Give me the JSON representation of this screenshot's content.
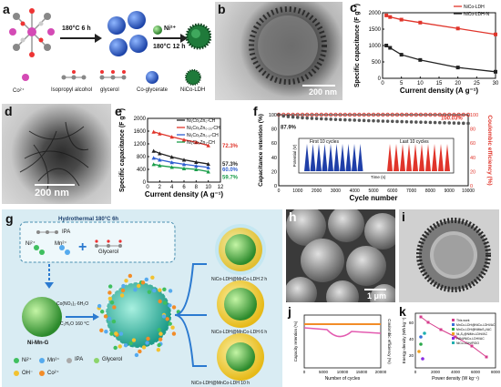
{
  "labels": {
    "a": "a",
    "b": "b",
    "c": "c",
    "d": "d",
    "e": "e",
    "f": "f",
    "g": "g",
    "h": "h",
    "i": "i",
    "j": "j",
    "k": "k"
  },
  "panel_a": {
    "step1": "180°C 6 h",
    "step2_ion": "Ni²⁺",
    "step2": "180°C 12 h",
    "legend": [
      "Co²⁺",
      "Isopropyl alcohol",
      "glycerol",
      "Co-glycerate",
      "NiCo-LDH"
    ]
  },
  "panel_b": {
    "scale": "200 nm"
  },
  "panel_d": {
    "scale": "200 nm"
  },
  "panel_c": {
    "chart_data": {
      "type": "line",
      "ylabel": "Specific capacitance (F g⁻¹)",
      "xlabel": "Current density (A g⁻¹)",
      "xlim": [
        0,
        30
      ],
      "ylim": [
        0,
        2000
      ],
      "xticks": [
        "0",
        "5",
        "10",
        "15",
        "20",
        "25",
        "30"
      ],
      "yticks": [
        "0",
        "500",
        "1000",
        "1500",
        "2000"
      ],
      "legend_position": "top-right",
      "series": [
        {
          "name": "NiCo-LDH",
          "color": "#e0352b",
          "marker": "square",
          "x": [
            1,
            2,
            5,
            10,
            20,
            30
          ],
          "y": [
            1920,
            1870,
            1790,
            1700,
            1520,
            1340
          ]
        },
        {
          "name": "NiCo-LDH-N",
          "color": "#222222",
          "marker": "square",
          "x": [
            1,
            2,
            5,
            10,
            20,
            30
          ],
          "y": [
            1000,
            930,
            720,
            560,
            330,
            200
          ]
        }
      ]
    }
  },
  "panel_e": {
    "chart_data": {
      "type": "line",
      "ylabel": "Specific capacitance (F g⁻¹)",
      "xlabel": "Current density (A g⁻¹)",
      "xlim": [
        0,
        12
      ],
      "ylim": [
        0,
        2000
      ],
      "xticks": [
        "0",
        "2",
        "4",
        "6",
        "8",
        "10",
        "12"
      ],
      "yticks": [
        "0",
        "400",
        "800",
        "1200",
        "1600",
        "2000"
      ],
      "legend_position": "top-right",
      "series": [
        {
          "name": "Ni₁Co₁Zn₀-CH",
          "color": "#222222",
          "x": [
            1,
            2,
            4,
            6,
            8,
            10
          ],
          "y": [
            980,
            900,
            790,
            700,
            630,
            570
          ]
        },
        {
          "name": "Ni₁Co₁Zn₀.₂₅-CH",
          "color": "#e0352b",
          "x": [
            1,
            2,
            4,
            6,
            8,
            10
          ],
          "y": [
            1580,
            1520,
            1420,
            1330,
            1250,
            1150
          ]
        },
        {
          "name": "Ni₁Co₁Zn₀.₅-CH",
          "color": "#2f5fd0",
          "x": [
            1,
            2,
            4,
            6,
            8,
            10
          ],
          "y": [
            760,
            700,
            620,
            560,
            510,
            460
          ]
        },
        {
          "name": "Ni₁Co₁Zn₁-CH",
          "color": "#1b9e4b",
          "x": [
            1,
            2,
            4,
            6,
            8,
            10
          ],
          "y": [
            560,
            520,
            470,
            430,
            400,
            330
          ]
        }
      ],
      "annotations": [
        {
          "text": "72.3%",
          "color": "#e0352b"
        },
        {
          "text": "57.3%",
          "color": "#222222"
        },
        {
          "text": "60.0%",
          "color": "#2f5fd0"
        },
        {
          "text": "59.7%",
          "color": "#1b9e4b"
        }
      ]
    }
  },
  "panel_f": {
    "chart_data": {
      "type": "scatter",
      "ylabel_left": "Capacitance retention (%)",
      "ylabel_right": "Coulombic efficiency (%)",
      "xlabel": "Cycle number",
      "xlim": [
        0,
        10000
      ],
      "ylim": [
        0,
        100
      ],
      "xticks": [
        "0",
        "1000",
        "2000",
        "3000",
        "4000",
        "5000",
        "6000",
        "7000",
        "8000",
        "9000",
        "10000"
      ],
      "yticks": [
        "0",
        "20",
        "40",
        "60",
        "80",
        "100"
      ],
      "series": [
        {
          "name": "Coulombic efficiency",
          "color": "#e0352b",
          "y_start": 100,
          "y_end": 100
        },
        {
          "name": "Capacitance retention",
          "color": "#555555",
          "y_start": 100,
          "y_end": 87.9
        }
      ],
      "annotations": [
        {
          "text": "87.9%",
          "color": "#222222"
        },
        {
          "text": "100.03%",
          "color": "#e0352b"
        }
      ],
      "inset": {
        "ylabel": "Potential (V)",
        "xlabel": "Time (s)",
        "first_label": "First 10 cycles",
        "last_label": "Last 10 cycles",
        "first_ticks": [
          "0",
          "200",
          "400",
          "600",
          "800",
          "1000"
        ],
        "last_ticks": [
          "862000",
          "862100",
          "862200",
          "862300",
          "862400"
        ],
        "yticks": [
          "0.0",
          "0.2",
          "0.4",
          "0.6"
        ]
      }
    }
  },
  "panel_g": {
    "hydro_title": "Hydrothermal 180°C 6h",
    "ipa": "IPA",
    "ni": "Ni²⁺",
    "mn": "Mn²⁺",
    "glycerol": "Glycerol",
    "core": "Ni-Mn-G",
    "reagent1": "Co(NO₃)₂·6H₂O",
    "reagent2": "C₂H₆O 160 °C",
    "product1": "NiCo-LDH@MnCo-LDH 2 h",
    "product2": "NiCo-LDH@MnCo-LDH 6 h",
    "product3": "NiCo-LDH@MnCo-LDH 10 h",
    "legend": [
      "Ni²⁺",
      "Mn²⁺",
      "IPA",
      "Glycerol",
      "OH⁻",
      "Co²⁺"
    ]
  },
  "panel_h": {
    "scale": "1 μm"
  },
  "panel_j": {
    "chart_data": {
      "type": "line",
      "ylabel_left": "Capacity retention (%)",
      "ylabel_right": "Coulombic efficiency (%)",
      "xlabel": "Number of cycles",
      "xlim": [
        0,
        20000
      ],
      "xticks": [
        "0",
        "5000",
        "10000",
        "15000",
        "20000"
      ],
      "series": [
        {
          "name": "Coulombic efficiency",
          "color": "#f28c28"
        },
        {
          "name": "Capacity retention",
          "color": "#e35bb0"
        }
      ]
    }
  },
  "panel_k": {
    "chart_data": {
      "type": "scatter",
      "ylabel": "Energy density (Wh kg⁻¹)",
      "xlabel": "Power density (W kg⁻¹)",
      "xticks": [
        "0",
        "2000",
        "4000",
        "6000",
        "8000"
      ],
      "yticks": [
        "20",
        "40",
        "60"
      ],
      "legend_position": "top-right",
      "series": [
        {
          "name": "This work",
          "color": "#d63c8c"
        },
        {
          "name": "MnCo-LDH@NiCo-LDH//AC",
          "color": "#3a6fd8"
        },
        {
          "name": "MnCo-LDH@NiMoS₄//AC",
          "color": "#2aa84a"
        },
        {
          "name": "Ni₃S₂@NiMn-LDH//AC",
          "color": "#f0a020"
        },
        {
          "name": "PANI/NiCo-LDH//AC",
          "color": "#8a2be2"
        },
        {
          "name": "NiCo-LDH//RGO",
          "color": "#20b0b0"
        }
      ]
    }
  }
}
